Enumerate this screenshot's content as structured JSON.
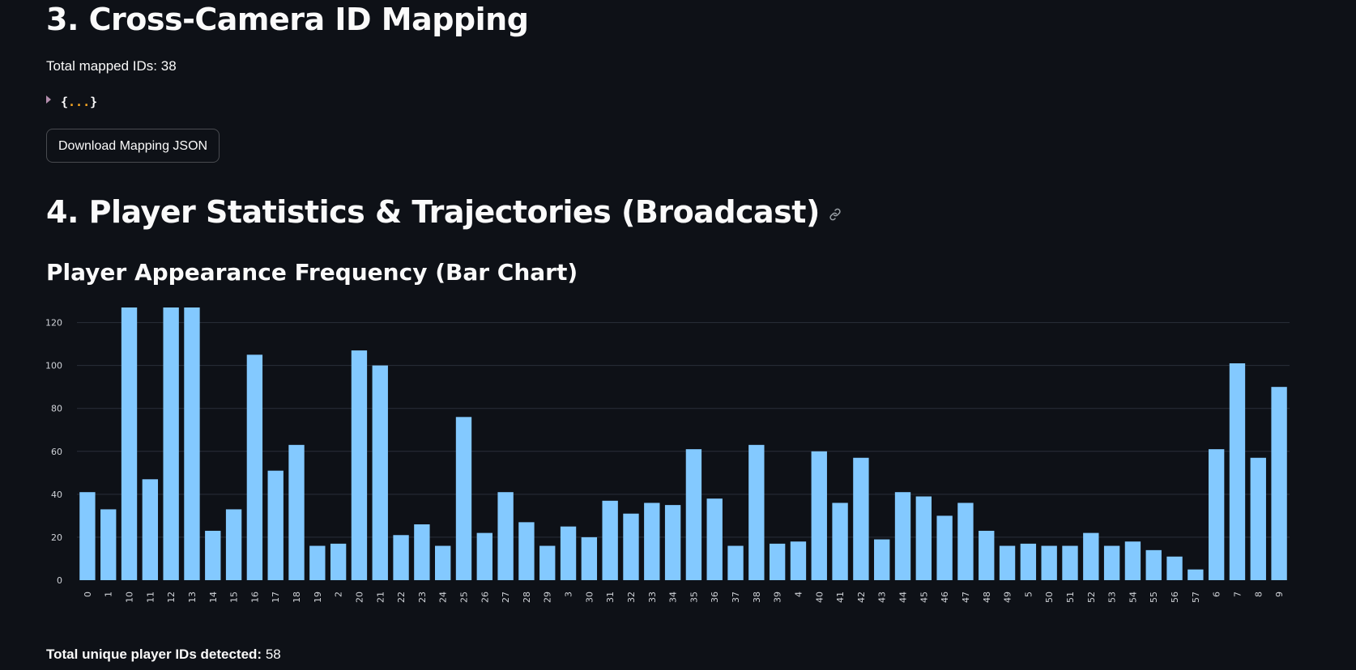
{
  "sections": {
    "cross_camera": {
      "title": "3. Cross-Camera ID Mapping",
      "mapped_label": "Total mapped IDs: 38",
      "json_preview": {
        "open": "{",
        "dots": "...",
        "close": "}"
      },
      "download_button": "Download Mapping JSON"
    },
    "player_stats": {
      "title": "4. Player Statistics & Trajectories (Broadcast)",
      "link_icon": "link-icon",
      "chart_heading": "Player Appearance Frequency (Bar Chart)",
      "unique_label": "Total unique player IDs detected:",
      "unique_value": "58"
    }
  },
  "colors": {
    "background": "#0e1117",
    "bar": "#83c9ff",
    "grid": "#2a2f3a",
    "text": "#fafafa"
  },
  "chart_data": {
    "type": "bar",
    "categories": [
      "0",
      "1",
      "10",
      "11",
      "12",
      "13",
      "14",
      "15",
      "16",
      "17",
      "18",
      "19",
      "2",
      "20",
      "21",
      "22",
      "23",
      "24",
      "25",
      "26",
      "27",
      "28",
      "29",
      "3",
      "30",
      "31",
      "32",
      "33",
      "34",
      "35",
      "36",
      "37",
      "38",
      "39",
      "4",
      "40",
      "41",
      "42",
      "43",
      "44",
      "45",
      "46",
      "47",
      "48",
      "49",
      "5",
      "50",
      "51",
      "52",
      "53",
      "54",
      "55",
      "56",
      "57",
      "6",
      "7",
      "8",
      "9"
    ],
    "values": [
      41,
      33,
      127,
      47,
      127,
      127,
      23,
      33,
      105,
      51,
      63,
      16,
      17,
      107,
      100,
      21,
      26,
      16,
      76,
      22,
      41,
      27,
      16,
      25,
      20,
      37,
      31,
      36,
      35,
      61,
      38,
      16,
      63,
      17,
      18,
      60,
      36,
      57,
      19,
      41,
      39,
      30,
      36,
      23,
      16,
      17,
      16,
      16,
      22,
      16,
      18,
      14,
      11,
      5,
      61,
      101,
      57,
      90
    ],
    "yticks": [
      0,
      20,
      40,
      60,
      80,
      100,
      120
    ],
    "ylim": [
      0,
      127
    ],
    "grid": true,
    "title": "",
    "xlabel": "",
    "ylabel": ""
  }
}
